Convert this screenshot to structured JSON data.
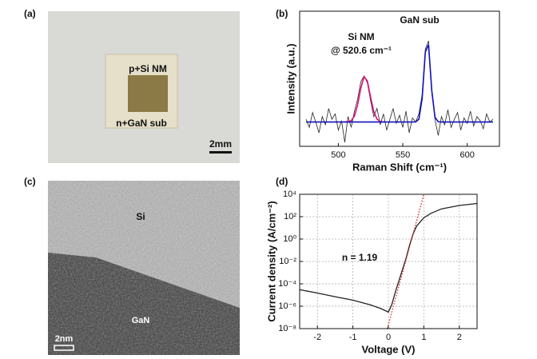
{
  "panels": {
    "a": {
      "label": "(a)",
      "top_text": "p+Si NM",
      "bottom_text": "n+GaN sub",
      "scale": "2mm"
    },
    "b": {
      "label": "(b)"
    },
    "c": {
      "label": "(c)",
      "top_text": "Si",
      "bottom_text": "GaN",
      "scale": "2nm"
    },
    "d": {
      "label": "(d)"
    }
  },
  "chart_data": [
    {
      "type": "line",
      "xlabel": "Raman Shift (cm⁻¹)",
      "ylabel": "Intensity (a.u.)",
      "annotations": [
        "Si NM",
        "@ 520.6 cm⁻¹",
        "GaN sub"
      ],
      "xlim": [
        470,
        625
      ],
      "ylim": [
        0,
        100
      ],
      "xticks": [
        500,
        550,
        600
      ],
      "log": false,
      "grid": false,
      "x": [
        475,
        477.5,
        480,
        482.5,
        485,
        487.5,
        490,
        492.5,
        495,
        497.5,
        500,
        502.5,
        505,
        507.5,
        510,
        512.5,
        515,
        517.5,
        520,
        522.5,
        525,
        527.5,
        530,
        532.5,
        535,
        537.5,
        540,
        542.5,
        545,
        547.5,
        550,
        552.5,
        555,
        557.5,
        560,
        562.5,
        565,
        567.5,
        570,
        572.5,
        575,
        577.5,
        580,
        582.5,
        585,
        587.5,
        590,
        592.5,
        595,
        597.5,
        600,
        602.5,
        605,
        607.5,
        610,
        612.5,
        615,
        617.5,
        620
      ],
      "series": [
        {
          "color": "#222222",
          "width": 0.8,
          "values": [
            20,
            14,
            25,
            18,
            10,
            22,
            16,
            28,
            20,
            24,
            12,
            19,
            3,
            22,
            14,
            26,
            35,
            48,
            52,
            47,
            34,
            22,
            28,
            16,
            24,
            12,
            20,
            28,
            17,
            23,
            14,
            26,
            10,
            21,
            18,
            24,
            38,
            72,
            78,
            40,
            20,
            8,
            22,
            16,
            27,
            14,
            20,
            25,
            12,
            21,
            17,
            26,
            15,
            22,
            19,
            13,
            24,
            18,
            20
          ]
        },
        {
          "color": "#e0107a",
          "width": 1.6,
          "values": [
            null,
            null,
            null,
            null,
            null,
            null,
            null,
            null,
            null,
            null,
            null,
            null,
            18,
            18.2,
            19,
            22.4,
            30.8,
            43.2,
            51.6,
            48.4,
            36.6,
            25.7,
            20.1,
            18.4,
            18,
            null,
            null,
            null,
            null,
            null,
            null,
            null,
            null,
            null,
            null,
            null,
            null,
            null,
            null,
            null,
            null,
            null,
            null,
            null,
            null,
            null,
            null,
            null,
            null,
            null,
            null,
            null,
            null,
            null,
            null,
            null,
            null,
            null,
            null
          ]
        },
        {
          "color": "#1010c0",
          "width": 1.6,
          "values": [
            18,
            18,
            18,
            18,
            18,
            18,
            18,
            18,
            18,
            18,
            18,
            18,
            18,
            18,
            18,
            18,
            18,
            18,
            18,
            18,
            18,
            18,
            18,
            18,
            18,
            18,
            18,
            18,
            18,
            18,
            18,
            18,
            18,
            18,
            18.1,
            20.1,
            35.2,
            69.8,
            75.2,
            41.3,
            21.5,
            18.2,
            18,
            18,
            18,
            18,
            18,
            18,
            18,
            18,
            18,
            18,
            18,
            18,
            18,
            18,
            18,
            18,
            18
          ]
        }
      ]
    },
    {
      "type": "line",
      "xlabel": "Voltage (V)",
      "ylabel": "Current density (A/cm⁻²)",
      "annotations": [
        "n = 1.19"
      ],
      "xlim": [
        -2.5,
        2.5
      ],
      "ylim": [
        1e-08,
        10000
      ],
      "log": true,
      "grid": true,
      "xticks": [
        -2,
        -1,
        0,
        1,
        2
      ],
      "yticks": [
        {
          "value": 1e-08,
          "label": "10⁻⁸"
        },
        {
          "value": 1e-06,
          "label": "10⁻⁶"
        },
        {
          "value": 0.0001,
          "label": "10⁻⁴"
        },
        {
          "value": 0.01,
          "label": "10⁻²"
        },
        {
          "value": 1,
          "label": "10⁰"
        },
        {
          "value": 100,
          "label": "10²"
        },
        {
          "value": 10000,
          "label": "10⁴"
        }
      ],
      "series": [
        {
          "color": "#222222",
          "width": 1.3,
          "x": [
            -2.5,
            -2,
            -1.5,
            -1,
            -0.5,
            -0.2,
            0,
            0.1,
            0.2,
            0.3,
            0.4,
            0.5,
            0.6,
            0.7,
            0.8,
            1.0,
            1.2,
            1.5,
            2,
            2.5
          ],
          "values": [
            3e-05,
            1.5e-05,
            7e-06,
            3.5e-06,
            1.3e-06,
            6e-07,
            3e-07,
            1.5e-06,
            2e-05,
            0.0002,
            0.002,
            0.02,
            0.3,
            3,
            15,
            80,
            200,
            500,
            1000,
            1500
          ]
        },
        {
          "color": "#e02020",
          "width": 1.3,
          "dash": true,
          "x": [
            -0.03,
            1.0
          ],
          "values": [
            1e-08,
            10000
          ]
        }
      ]
    }
  ]
}
